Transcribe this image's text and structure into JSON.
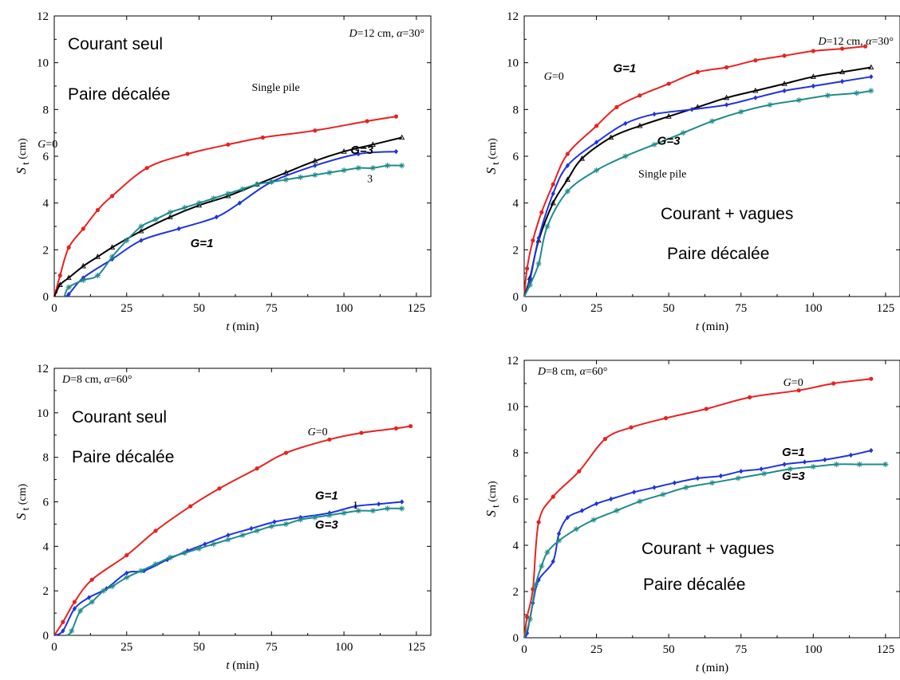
{
  "colors": {
    "G=0": "#e8221f",
    "G=1": "#1f33e0",
    "G=3": "#1f8b8b",
    "single pile": "#000000"
  },
  "chart_data": [
    {
      "type": "line",
      "panel": "top-left",
      "param": "D=12 cm, α=30°",
      "overlay": [
        "Courant seul",
        "Paire décalée"
      ],
      "xlabel": "t (min)",
      "ylabel": "S t (cm)",
      "xlim": [
        0,
        130
      ],
      "ylim": [
        0,
        12
      ],
      "xticks": [
        "0",
        "25",
        "50",
        "75",
        "100",
        "125"
      ],
      "yticks": [
        "0",
        "2",
        "4",
        "6",
        "8",
        "10",
        "12"
      ],
      "series": [
        {
          "name": "G=0",
          "marker": "dot",
          "x": [
            0.5,
            2,
            5,
            10,
            15,
            20,
            32,
            46,
            60,
            72,
            90,
            108,
            118
          ],
          "y": [
            0.2,
            0.9,
            2.1,
            2.9,
            3.7,
            4.3,
            5.5,
            6.1,
            6.5,
            6.8,
            7.1,
            7.5,
            7.7
          ]
        },
        {
          "name": "Single pile",
          "marker": "triangle",
          "x": [
            2,
            5,
            10,
            15,
            20,
            30,
            40,
            50,
            60,
            70,
            80,
            90,
            100,
            110,
            120
          ],
          "y": [
            0.5,
            0.8,
            1.3,
            1.7,
            2.1,
            2.8,
            3.4,
            3.9,
            4.3,
            4.8,
            5.3,
            5.8,
            6.2,
            6.5,
            6.8
          ]
        },
        {
          "name": "G=1",
          "marker": "diamond",
          "x": [
            5,
            10,
            20,
            30,
            43,
            56,
            64,
            75,
            90,
            105,
            118
          ],
          "y": [
            0.1,
            0.8,
            1.6,
            2.4,
            2.9,
            3.4,
            4.0,
            4.9,
            5.6,
            6.1,
            6.2
          ]
        },
        {
          "name": "G=3",
          "marker": "asterisk",
          "x": [
            5,
            10,
            15,
            20,
            25,
            30,
            35,
            40,
            45,
            50,
            55,
            60,
            65,
            70,
            75,
            80,
            85,
            90,
            95,
            100,
            105,
            110,
            115,
            120
          ],
          "y": [
            0.4,
            0.7,
            0.9,
            1.7,
            2.4,
            3.0,
            3.3,
            3.6,
            3.8,
            4.0,
            4.2,
            4.4,
            4.6,
            4.8,
            4.9,
            5.0,
            5.1,
            5.2,
            5.3,
            5.4,
            5.5,
            5.5,
            5.6,
            5.6
          ]
        }
      ],
      "labels": {
        "g0": "G=0",
        "g1": "G=1",
        "g3": "G=3",
        "single": "Single pile",
        "three": "3"
      }
    },
    {
      "type": "line",
      "panel": "top-right",
      "param": "D=12 cm, α=30°",
      "overlay": [
        "Courant + vagues",
        "Paire décalée"
      ],
      "xlabel": "t (min)",
      "ylabel": "S t (cm)",
      "xlim": [
        0,
        130
      ],
      "ylim": [
        0,
        12
      ],
      "xticks": [
        "0",
        "25",
        "50",
        "75",
        "100",
        "125"
      ],
      "yticks": [
        "0",
        "2",
        "4",
        "6",
        "8",
        "10",
        "12"
      ],
      "series": [
        {
          "name": "G=0",
          "marker": "dot",
          "x": [
            1,
            3,
            6,
            10,
            15,
            25,
            32,
            40,
            50,
            60,
            70,
            80,
            90,
            100,
            110,
            118
          ],
          "y": [
            1.2,
            2.4,
            3.6,
            4.8,
            6.1,
            7.3,
            8.1,
            8.6,
            9.1,
            9.6,
            9.8,
            10.1,
            10.3,
            10.5,
            10.6,
            10.7
          ]
        },
        {
          "name": "Single pile",
          "marker": "triangle",
          "x": [
            2,
            5,
            10,
            15,
            20,
            30,
            40,
            50,
            60,
            70,
            80,
            90,
            100,
            110,
            120
          ],
          "y": [
            0.8,
            2.4,
            4.0,
            5.0,
            5.9,
            6.8,
            7.3,
            7.7,
            8.1,
            8.5,
            8.8,
            9.1,
            9.4,
            9.6,
            9.8
          ]
        },
        {
          "name": "G=1",
          "marker": "diamond",
          "x": [
            2,
            5,
            10,
            15,
            25,
            35,
            45,
            58,
            70,
            80,
            90,
            100,
            110,
            120
          ],
          "y": [
            0.7,
            2.5,
            4.4,
            5.6,
            6.6,
            7.4,
            7.8,
            8.0,
            8.2,
            8.5,
            8.8,
            9.0,
            9.2,
            9.4
          ]
        },
        {
          "name": "G=3",
          "marker": "asterisk",
          "x": [
            2,
            5,
            8,
            15,
            25,
            35,
            45,
            55,
            65,
            75,
            85,
            95,
            105,
            115,
            120
          ],
          "y": [
            0.5,
            1.4,
            3.0,
            4.5,
            5.4,
            6.0,
            6.5,
            7.0,
            7.5,
            7.9,
            8.2,
            8.4,
            8.6,
            8.7,
            8.8
          ]
        }
      ],
      "labels": {
        "g0": "G=0",
        "g1": "G=1",
        "g3": "G=3",
        "single": "Single pile"
      }
    },
    {
      "type": "line",
      "panel": "bottom-left",
      "param": "D=8 cm, α=60°",
      "overlay": [
        "Courant seul",
        "Paire décalée"
      ],
      "xlabel": "t (min)",
      "ylabel": "S t (cm)",
      "xlim": [
        0,
        130
      ],
      "ylim": [
        0,
        12
      ],
      "xticks": [
        "0",
        "25",
        "50",
        "75",
        "100",
        "125"
      ],
      "yticks": [
        "0",
        "2",
        "4",
        "6",
        "8",
        "10",
        "12"
      ],
      "series": [
        {
          "name": "G=0",
          "marker": "dot",
          "x": [
            3,
            7,
            13,
            25,
            35,
            47,
            57,
            70,
            80,
            95,
            106,
            118,
            123
          ],
          "y": [
            0.6,
            1.5,
            2.5,
            3.6,
            4.7,
            5.8,
            6.6,
            7.5,
            8.2,
            8.8,
            9.1,
            9.3,
            9.4
          ]
        },
        {
          "name": "G=1",
          "marker": "diamond",
          "x": [
            3,
            7,
            12,
            18,
            25,
            31,
            39,
            46,
            52,
            60,
            68,
            76,
            85,
            95,
            104,
            112,
            120
          ],
          "y": [
            0.2,
            1.2,
            1.7,
            2.1,
            2.8,
            2.9,
            3.4,
            3.8,
            4.1,
            4.5,
            4.8,
            5.1,
            5.3,
            5.5,
            5.8,
            5.9,
            6.0
          ]
        },
        {
          "name": "G=3",
          "marker": "asterisk",
          "x": [
            6,
            9,
            13,
            17,
            20,
            25,
            30,
            35,
            40,
            45,
            50,
            55,
            60,
            65,
            70,
            75,
            80,
            85,
            90,
            95,
            100,
            105,
            110,
            115,
            120
          ],
          "y": [
            0.2,
            1.1,
            1.5,
            2.0,
            2.2,
            2.6,
            2.9,
            3.2,
            3.5,
            3.7,
            3.9,
            4.1,
            4.3,
            4.5,
            4.7,
            4.9,
            5.0,
            5.2,
            5.3,
            5.4,
            5.5,
            5.6,
            5.6,
            5.7,
            5.7
          ]
        }
      ],
      "labels": {
        "g0": "G=0",
        "g1": "G=1",
        "g3": "G=3",
        "one": "1"
      }
    },
    {
      "type": "line",
      "panel": "bottom-right",
      "param": "D=8 cm, α=60°",
      "overlay": [
        "Courant + vagues",
        "Paire décalée"
      ],
      "xlabel": "t (min)",
      "ylabel": "S t (cm)",
      "xlim": [
        0,
        130
      ],
      "ylim": [
        0,
        12
      ],
      "xticks": [
        "0",
        "25",
        "50",
        "75",
        "100",
        "125"
      ],
      "yticks": [
        "0",
        "2",
        "4",
        "6",
        "8",
        "10",
        "12"
      ],
      "series": [
        {
          "name": "G=0",
          "marker": "dot",
          "x": [
            1,
            3,
            5,
            10,
            19,
            28,
            37,
            49,
            63,
            78,
            95,
            107,
            120
          ],
          "y": [
            0.9,
            2.1,
            5.0,
            6.1,
            7.2,
            8.6,
            9.1,
            9.5,
            9.9,
            10.4,
            10.7,
            11.0,
            11.2
          ]
        },
        {
          "name": "G=1",
          "marker": "diamond",
          "x": [
            1,
            3,
            5,
            10,
            12,
            15,
            20,
            25,
            30,
            38,
            45,
            52,
            60,
            68,
            75,
            82,
            90,
            97,
            104,
            113,
            120
          ],
          "y": [
            0.2,
            1.5,
            2.5,
            3.3,
            4.5,
            5.2,
            5.5,
            5.8,
            6.0,
            6.3,
            6.5,
            6.7,
            6.9,
            7.0,
            7.2,
            7.3,
            7.5,
            7.6,
            7.7,
            7.9,
            8.1
          ]
        },
        {
          "name": "G=3",
          "marker": "asterisk",
          "x": [
            2,
            4,
            6,
            8,
            12,
            18,
            24,
            32,
            40,
            48,
            56,
            65,
            74,
            83,
            92,
            100,
            108,
            116,
            125
          ],
          "y": [
            0.8,
            2.3,
            3.1,
            3.7,
            4.2,
            4.7,
            5.1,
            5.5,
            5.9,
            6.2,
            6.5,
            6.7,
            6.9,
            7.1,
            7.3,
            7.4,
            7.5,
            7.5,
            7.5
          ]
        }
      ],
      "labels": {
        "g0": "G=0",
        "g1": "G=1",
        "g3": "G=3"
      }
    }
  ]
}
